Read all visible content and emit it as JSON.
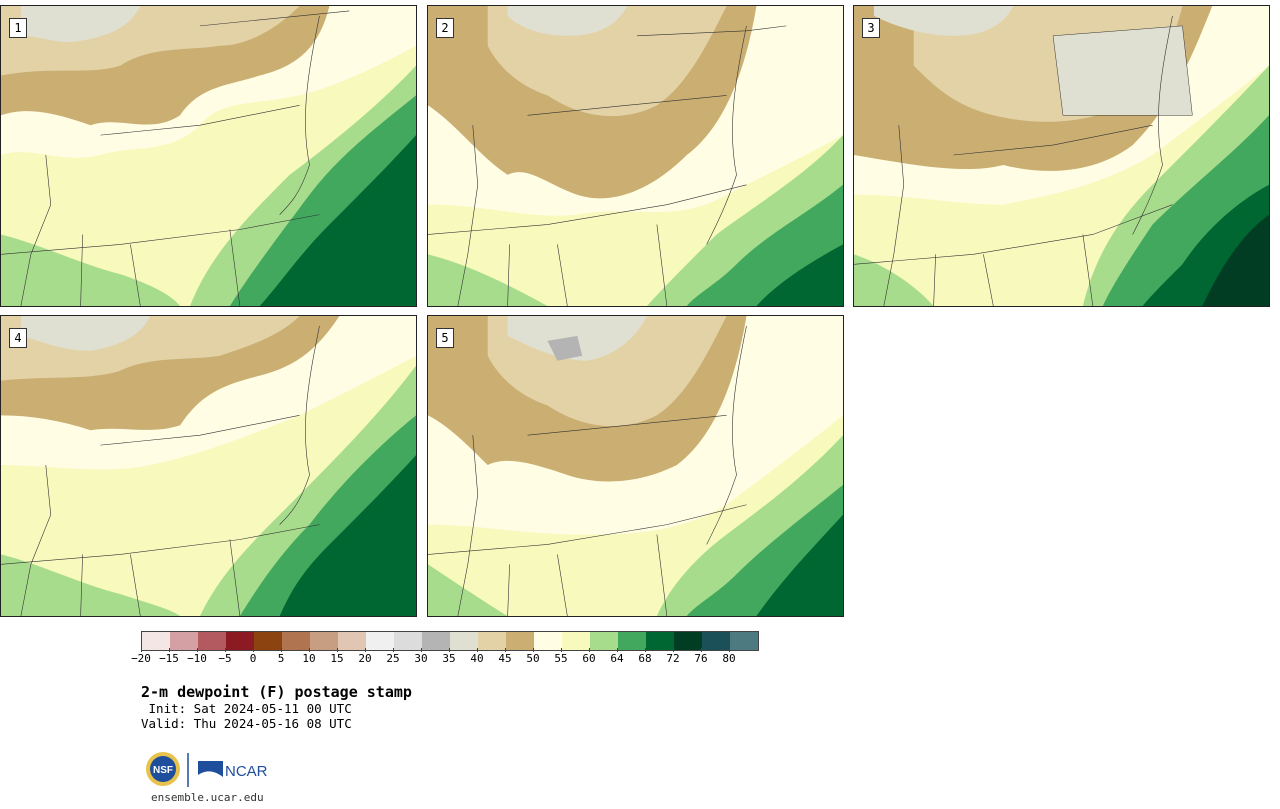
{
  "panels": [
    {
      "label": "1"
    },
    {
      "label": "2"
    },
    {
      "label": "3"
    },
    {
      "label": "4"
    },
    {
      "label": "5"
    }
  ],
  "colorbar": {
    "colors": [
      "#f5e6e6",
      "#d4a0a4",
      "#b35a60",
      "#8c1a22",
      "#8c4310",
      "#b07550",
      "#c89e82",
      "#e2c6b4",
      "#f0f0f0",
      "#dcdcdc",
      "#b4b4b4",
      "#e0e0d2",
      "#e2d2a6",
      "#caae72",
      "#fffde4",
      "#f7f9bd",
      "#a7dc8c",
      "#41a85e",
      "#006732",
      "#003d22",
      "#1b5059",
      "#4c7a80"
    ],
    "ticks": [
      "−20",
      "−15",
      "−10",
      "−5",
      "0",
      "5",
      "10",
      "15",
      "20",
      "25",
      "30",
      "35",
      "40",
      "45",
      "50",
      "55",
      "60",
      "64",
      "68",
      "72",
      "76",
      "80"
    ]
  },
  "title": "2-m dewpoint (F) postage stamp",
  "init": " Init: Sat 2024-05-11 00 UTC",
  "valid": "Valid: Thu 2024-05-16 08 UTC",
  "logos": {
    "nsf": "NSF",
    "ncar": "NCAR"
  },
  "url": "ensemble.ucar.edu"
}
